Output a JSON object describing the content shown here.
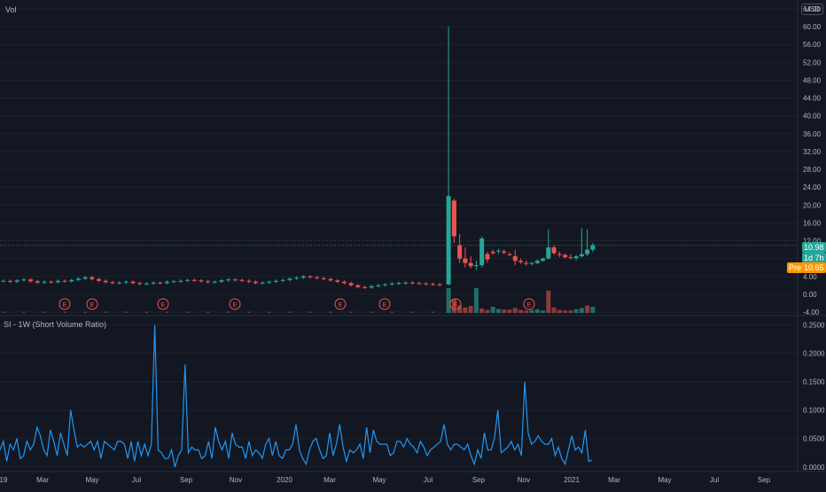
{
  "header": {
    "vol_label": "Vol",
    "currency_label": "USD"
  },
  "price_badges": {
    "last": "10.98",
    "countdown": "1d 7h",
    "pre_label": "Pre",
    "pre_value": "10.65"
  },
  "colors": {
    "background": "#131722",
    "grid": "#1e222d",
    "up": "#26a69a",
    "down": "#ef5350",
    "line": "#2962ff",
    "si_line": "#2196f3",
    "pre": "#ff9800",
    "price_line": "#4caf50"
  },
  "chart_data": [
    {
      "type": "candlestick",
      "title": "",
      "ylim": [
        -4,
        64
      ],
      "y_ticks": [
        "64.00",
        "60.00",
        "56.00",
        "52.00",
        "48.00",
        "44.00",
        "40.00",
        "36.00",
        "32.00",
        "28.00",
        "24.00",
        "20.00",
        "16.00",
        "12.00",
        "8.00",
        "4.00",
        "0.00",
        "-4.00"
      ],
      "earnings_marker": "E",
      "earnings_x": [
        "2019-03",
        "2019-05",
        "2019-08",
        "2019-11",
        "2020-04",
        "2020-06",
        "2020-08",
        "2020-11"
      ],
      "candles_early_baseline": [
        3.0,
        2.8,
        3.1,
        3.3,
        2.9,
        2.6,
        2.8,
        2.7,
        3.0,
        2.9,
        3.2,
        3.5,
        3.8,
        3.4,
        3.0,
        2.7,
        2.5,
        2.6,
        2.8,
        2.5,
        2.3,
        2.4,
        2.6,
        2.5,
        2.8,
        2.9,
        3.0,
        3.2,
        3.1,
        2.9,
        2.7,
        2.8,
        3.1,
        3.3,
        3.2,
        3.0,
        2.8,
        2.5,
        2.6,
        2.8,
        3.0,
        3.2,
        3.5,
        3.7,
        4.0,
        3.8,
        3.6,
        3.4,
        3.1,
        2.8,
        2.5,
        2.0,
        1.6,
        1.5,
        1.8,
        2.0,
        2.2,
        2.4,
        2.5,
        2.6,
        2.5,
        2.4,
        2.3,
        2.2,
        2.1
      ],
      "candles_late": [
        {
          "o": 2.2,
          "h": 60.0,
          "l": 2.0,
          "c": 22.0
        },
        {
          "o": 21.0,
          "h": 21.5,
          "l": 11.5,
          "c": 13.0
        },
        {
          "o": 11.0,
          "h": 13.5,
          "l": 7.0,
          "c": 8.0
        },
        {
          "o": 8.0,
          "h": 10.5,
          "l": 6.0,
          "c": 7.0
        },
        {
          "o": 7.0,
          "h": 8.5,
          "l": 5.8,
          "c": 6.3
        },
        {
          "o": 6.3,
          "h": 7.5,
          "l": 5.5,
          "c": 6.5
        },
        {
          "o": 6.5,
          "h": 13.0,
          "l": 6.0,
          "c": 12.5
        },
        {
          "o": 9.0,
          "h": 9.5,
          "l": 7.0,
          "c": 7.8
        },
        {
          "o": 9.5,
          "h": 10.0,
          "l": 8.8,
          "c": 9.2
        },
        {
          "o": 9.6,
          "h": 10.2,
          "l": 9.0,
          "c": 9.8
        },
        {
          "o": 9.6,
          "h": 10.1,
          "l": 8.9,
          "c": 9.3
        },
        {
          "o": 9.0,
          "h": 9.4,
          "l": 8.5,
          "c": 8.8
        },
        {
          "o": 8.5,
          "h": 10.0,
          "l": 6.5,
          "c": 7.5
        },
        {
          "o": 7.5,
          "h": 8.0,
          "l": 6.8,
          "c": 7.2
        },
        {
          "o": 7.0,
          "h": 7.6,
          "l": 6.4,
          "c": 6.8
        },
        {
          "o": 6.8,
          "h": 7.3,
          "l": 6.4,
          "c": 7.0
        },
        {
          "o": 7.0,
          "h": 7.8,
          "l": 6.7,
          "c": 7.5
        },
        {
          "o": 7.5,
          "h": 8.2,
          "l": 7.3,
          "c": 8.0
        },
        {
          "o": 8.0,
          "h": 14.5,
          "l": 7.8,
          "c": 10.5
        },
        {
          "o": 10.5,
          "h": 11.0,
          "l": 8.8,
          "c": 9.2
        },
        {
          "o": 9.0,
          "h": 9.6,
          "l": 8.3,
          "c": 8.8
        },
        {
          "o": 8.8,
          "h": 9.2,
          "l": 8.0,
          "c": 8.3
        },
        {
          "o": 8.3,
          "h": 8.9,
          "l": 7.8,
          "c": 8.1
        },
        {
          "o": 8.1,
          "h": 8.8,
          "l": 7.6,
          "c": 8.5
        },
        {
          "o": 8.5,
          "h": 14.8,
          "l": 8.2,
          "c": 9.0
        },
        {
          "o": 9.0,
          "h": 14.5,
          "l": 8.5,
          "c": 10.0
        },
        {
          "o": 10.0,
          "h": 11.5,
          "l": 9.5,
          "c": 10.98
        }
      ],
      "volume_late": [
        1.0,
        0.55,
        0.3,
        0.22,
        0.28,
        1.0,
        0.18,
        0.12,
        0.25,
        0.16,
        0.14,
        0.13,
        0.2,
        0.12,
        0.1,
        0.12,
        0.15,
        0.1,
        0.9,
        0.22,
        0.12,
        0.1,
        0.1,
        0.15,
        0.2,
        0.3,
        0.25
      ],
      "volume_late_up": [
        true,
        false,
        false,
        false,
        false,
        true,
        false,
        false,
        true,
        true,
        false,
        false,
        false,
        false,
        false,
        true,
        true,
        true,
        false,
        false,
        false,
        false,
        false,
        true,
        true,
        false,
        true
      ]
    },
    {
      "type": "line",
      "title": "SI - 1W (Short Volume Ratio)",
      "ylim": [
        -0.005,
        0.26
      ],
      "y_ticks": [
        "0.2500",
        "0.2000",
        "0.1500",
        "0.1000",
        "0.0500",
        "0.0000"
      ],
      "values": [
        0.03,
        0.045,
        0.01,
        0.04,
        0.03,
        0.05,
        0.015,
        0.02,
        0.045,
        0.03,
        0.04,
        0.07,
        0.055,
        0.03,
        0.02,
        0.065,
        0.045,
        0.02,
        0.06,
        0.04,
        0.02,
        0.1,
        0.065,
        0.035,
        0.04,
        0.035,
        0.04,
        0.045,
        0.03,
        0.045,
        0.015,
        0.045,
        0.04,
        0.035,
        0.03,
        0.045,
        0.045,
        0.04,
        0.015,
        0.045,
        0.01,
        0.045,
        0.02,
        0.04,
        0.02,
        0.04,
        0.25,
        0.03,
        0.025,
        0.015,
        0.015,
        0.03,
        0.0,
        0.02,
        0.03,
        0.18,
        0.025,
        0.035,
        0.03,
        0.03,
        0.015,
        0.02,
        0.045,
        0.015,
        0.07,
        0.045,
        0.03,
        0.045,
        0.015,
        0.06,
        0.04,
        0.035,
        0.035,
        0.015,
        0.045,
        0.02,
        0.03,
        0.025,
        0.015,
        0.04,
        0.05,
        0.02,
        0.045,
        0.02,
        0.015,
        0.03,
        0.03,
        0.04,
        0.075,
        0.03,
        0.015,
        0.005,
        0.03,
        0.045,
        0.05,
        0.03,
        0.015,
        0.02,
        0.06,
        0.02,
        0.04,
        0.075,
        0.035,
        0.01,
        0.03,
        0.025,
        0.03,
        0.04,
        0.015,
        0.07,
        0.025,
        0.065,
        0.045,
        0.04,
        0.04,
        0.04,
        0.02,
        0.025,
        0.045,
        0.045,
        0.035,
        0.05,
        0.04,
        0.035,
        0.025,
        0.045,
        0.035,
        0.02,
        0.03,
        0.035,
        0.04,
        0.045,
        0.075,
        0.04,
        0.03,
        0.04,
        0.04,
        0.035,
        0.03,
        0.04,
        0.02,
        0.005,
        0.03,
        0.015,
        0.06,
        0.03,
        0.03,
        0.05,
        0.1,
        0.025,
        0.03,
        0.035,
        0.045,
        0.03,
        0.04,
        0.02,
        0.15,
        0.06,
        0.04,
        0.045,
        0.055,
        0.045,
        0.04,
        0.04,
        0.05,
        0.02,
        0.035,
        0.015,
        0.005,
        0.03,
        0.055,
        0.03,
        0.035,
        0.025,
        0.065,
        0.01,
        0.012
      ]
    }
  ],
  "x_axis": {
    "labels": [
      "19",
      "Mar",
      "May",
      "Jul",
      "Sep",
      "Nov",
      "2020",
      "Mar",
      "May",
      "Jul",
      "Sep",
      "Nov",
      "2021",
      "Mar",
      "May",
      "Jul",
      "Sep"
    ]
  }
}
